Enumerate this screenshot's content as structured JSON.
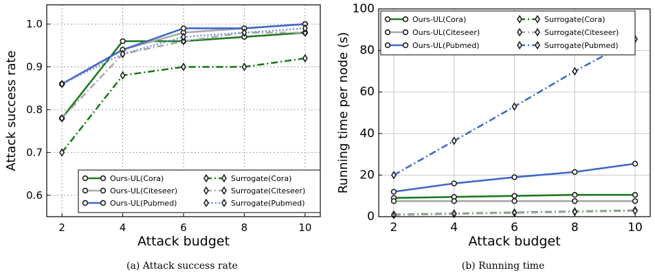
{
  "figure": {
    "caption_a": "(a)  Attack success rate",
    "caption_b": "(b)  Running time"
  },
  "chart_data": [
    {
      "type": "line",
      "xlabel": "Attack budget",
      "ylabel": "Attack success rate",
      "x": [
        2,
        4,
        6,
        8,
        10
      ],
      "xlim": [
        1.5,
        10.5
      ],
      "ylim": [
        0.55,
        1.045
      ],
      "xticks": [
        2,
        4,
        6,
        8,
        10
      ],
      "yticks": [
        0.6,
        0.7,
        0.8,
        0.9,
        1.0
      ],
      "ytick_labels": [
        "0.6",
        "0.7",
        "0.8",
        "0.9",
        "1.0"
      ],
      "grid": true,
      "grid_style": "dotted",
      "legend_placement": "lower-right",
      "legend_columns": 2,
      "series": [
        {
          "name": "Ours-UL(Cora)",
          "values": [
            0.78,
            0.96,
            0.96,
            0.97,
            0.98
          ],
          "color": "#1a7a1a",
          "style": "solid",
          "marker": "circle"
        },
        {
          "name": "Ours-UL(Citeseer)",
          "values": [
            0.86,
            0.94,
            0.98,
            0.99,
            1.0
          ],
          "color": "#a8a8a8",
          "style": "solid",
          "marker": "circle"
        },
        {
          "name": "Ours-UL(Pubmed)",
          "values": [
            0.86,
            0.94,
            0.99,
            0.99,
            1.0
          ],
          "color": "#3f68c8",
          "style": "solid",
          "marker": "circle"
        },
        {
          "name": "Surrogate(Cora)",
          "values": [
            0.7,
            0.88,
            0.9,
            0.9,
            0.92
          ],
          "color": "#1a7a1a",
          "style": "dashdot",
          "marker": "diamond"
        },
        {
          "name": "Surrogate(Citeseer)",
          "values": [
            0.78,
            0.93,
            0.96,
            0.98,
            0.98
          ],
          "color": "#a8a8a8",
          "style": "dashdot",
          "marker": "diamond"
        },
        {
          "name": "Surrogate(Pubmed)",
          "values": [
            0.86,
            0.93,
            0.97,
            0.98,
            0.99
          ],
          "color": "#6f8edb",
          "style": "dotted",
          "marker": "diamond"
        }
      ]
    },
    {
      "type": "line",
      "xlabel": "Attack budget",
      "ylabel": "Running time per node (s)",
      "x": [
        2,
        4,
        6,
        8,
        10
      ],
      "xlim": [
        1.5,
        10.5
      ],
      "ylim": [
        0,
        100
      ],
      "xticks": [
        2,
        4,
        6,
        8,
        10
      ],
      "yticks": [
        0,
        20,
        40,
        60,
        80,
        100
      ],
      "ytick_labels": [
        "0",
        "20",
        "40",
        "60",
        "80",
        "100"
      ],
      "grid": true,
      "grid_style": "solid",
      "legend_placement": "top-left",
      "legend_columns": 2,
      "series": [
        {
          "name": "Ours-UL(Cora)",
          "values": [
            9,
            9.5,
            10,
            10.5,
            10.5
          ],
          "color": "#1a7a1a",
          "style": "solid",
          "marker": "circle"
        },
        {
          "name": "Ours-UL(Citeseer)",
          "values": [
            7.5,
            7.5,
            7.5,
            7.5,
            7.5
          ],
          "color": "#a8a8a8",
          "style": "solid",
          "marker": "circle"
        },
        {
          "name": "Ours-UL(Pubmed)",
          "values": [
            12,
            16,
            19,
            21.5,
            25.5
          ],
          "color": "#3f68c8",
          "style": "solid",
          "marker": "circle"
        },
        {
          "name": "Surrogate(Cora)",
          "values": [
            1,
            1.5,
            2,
            2.5,
            3
          ],
          "color": "#1a7a1a",
          "style": "dashdot",
          "marker": "diamond"
        },
        {
          "name": "Surrogate(Citeseer)",
          "values": [
            0.8,
            1.3,
            1.8,
            2.3,
            2.8
          ],
          "color": "#a8a8a8",
          "style": "dashdot",
          "marker": "diamond"
        },
        {
          "name": "Surrogate(Pubmed)",
          "values": [
            20,
            36.5,
            53,
            70,
            85.5
          ],
          "color": "#3f68c8",
          "style": "dashdot",
          "marker": "diamond"
        }
      ]
    }
  ]
}
